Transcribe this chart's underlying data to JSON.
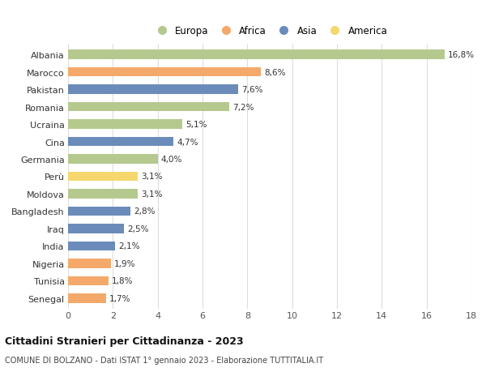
{
  "countries": [
    "Albania",
    "Marocco",
    "Pakistan",
    "Romania",
    "Ucraina",
    "Cina",
    "Germania",
    "Perù",
    "Moldova",
    "Bangladesh",
    "Iraq",
    "India",
    "Nigeria",
    "Tunisia",
    "Senegal"
  ],
  "values": [
    16.8,
    8.6,
    7.6,
    7.2,
    5.1,
    4.7,
    4.0,
    3.1,
    3.1,
    2.8,
    2.5,
    2.1,
    1.9,
    1.8,
    1.7
  ],
  "labels": [
    "16,8%",
    "8,6%",
    "7,6%",
    "7,2%",
    "5,1%",
    "4,7%",
    "4,0%",
    "3,1%",
    "3,1%",
    "2,8%",
    "2,5%",
    "2,1%",
    "1,9%",
    "1,8%",
    "1,7%"
  ],
  "continents": [
    "Europa",
    "Africa",
    "Asia",
    "Europa",
    "Europa",
    "Asia",
    "Europa",
    "America",
    "Europa",
    "Asia",
    "Asia",
    "Asia",
    "Africa",
    "Africa",
    "Africa"
  ],
  "colors": {
    "Europa": "#b5c98e",
    "Africa": "#f4a96a",
    "Asia": "#6b8cba",
    "America": "#f5d76e"
  },
  "legend_order": [
    "Europa",
    "Africa",
    "Asia",
    "America"
  ],
  "title": "Cittadini Stranieri per Cittadinanza - 2023",
  "subtitle": "COMUNE DI BOLZANO - Dati ISTAT 1° gennaio 2023 - Elaborazione TUTTITALIA.IT",
  "xlim": [
    0,
    18
  ],
  "xticks": [
    0,
    2,
    4,
    6,
    8,
    10,
    12,
    14,
    16,
    18
  ],
  "background_color": "#ffffff",
  "grid_color": "#dddddd"
}
